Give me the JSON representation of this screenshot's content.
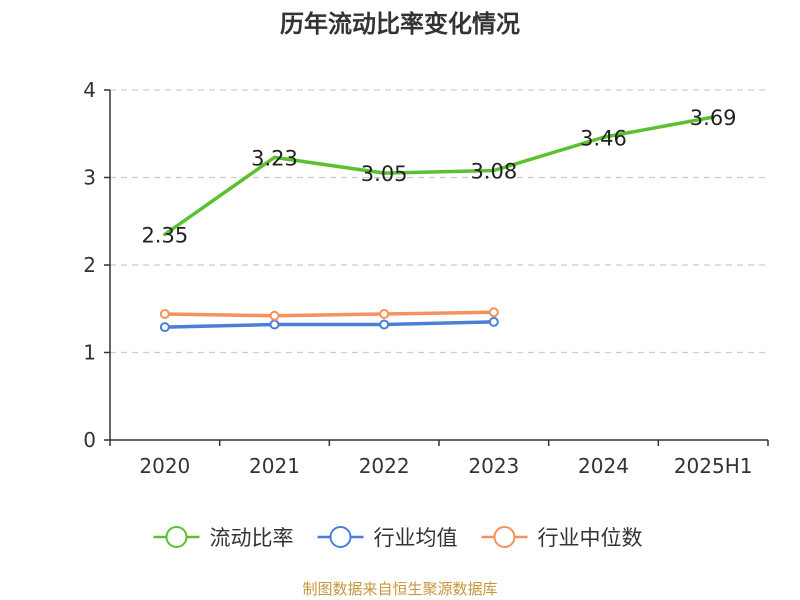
{
  "chart_data": {
    "type": "line",
    "title": "历年流动比率变化情况",
    "categories": [
      "2020",
      "2021",
      "2022",
      "2023",
      "2024",
      "2025H1"
    ],
    "ylim": [
      0,
      4
    ],
    "yticks": [
      "0",
      "1",
      "2",
      "3",
      "4"
    ],
    "grid": true,
    "legend_position": "bottom",
    "series": [
      {
        "name": "流动比率",
        "color": "#5bc130",
        "values": [
          2.35,
          3.23,
          3.05,
          3.08,
          3.46,
          3.69
        ],
        "labels": [
          "2.35",
          "3.23",
          "3.05",
          "3.08",
          "3.46",
          "3.69"
        ],
        "marker": "none"
      },
      {
        "name": "行业均值",
        "color": "#4a7fd8",
        "values": [
          1.29,
          1.32,
          1.32,
          1.35,
          null,
          null
        ],
        "marker": "circle"
      },
      {
        "name": "行业中位数",
        "color": "#f5925c",
        "values": [
          1.44,
          1.42,
          1.44,
          1.46,
          null,
          null
        ],
        "marker": "circle"
      }
    ],
    "source_note": "制图数据来自恒生聚源数据库"
  }
}
